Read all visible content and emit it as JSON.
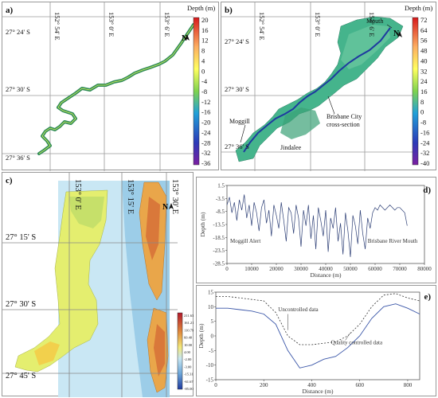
{
  "panel_a": {
    "label": "a)",
    "lon_labels": [
      "152° 54' E",
      "153° 0' E",
      "153° 6' E"
    ],
    "lat_labels": [
      "27° 24' S",
      "27° 30' S",
      "27° 36' S"
    ],
    "colorbar": {
      "title": "Depth (m)",
      "ticks": [
        "20",
        "16",
        "12",
        "8",
        "4",
        "0",
        "-4",
        "-8",
        "-12",
        "-16",
        "-20",
        "-24",
        "-28",
        "-32",
        "-36"
      ]
    },
    "north": "N"
  },
  "panel_b": {
    "label": "b)",
    "lon_labels": [
      "152° 54' E",
      "153° 0' E",
      "153° 6' E"
    ],
    "lat_labels": [
      "27° 24' S",
      "27° 30' S",
      "27° 36' S"
    ],
    "colorbar": {
      "title": "Depth (m)",
      "ticks": [
        "72",
        "64",
        "56",
        "48",
        "40",
        "32",
        "24",
        "16",
        "8",
        "0",
        "-8",
        "-16",
        "-24",
        "-32",
        "-40"
      ]
    },
    "north": "N",
    "annotations": {
      "mouth": "Mouth",
      "brisbane_city_1": "Brisbane City",
      "brisbane_city_2": "cross-section",
      "moggill": "Moggill",
      "jindalee": "Jindalee"
    }
  },
  "panel_c": {
    "label": "c)",
    "lon_labels": [
      "153° 0' E",
      "153° 15' E",
      "153° 30' E"
    ],
    "lat_labels": [
      "27° 15' S",
      "27° 30' S",
      "27° 45' S"
    ],
    "colorbar": {
      "ticks": [
        "211.63",
        "161.21",
        "110.79",
        "60.40",
        "10.00",
        "4.00",
        "-2.00",
        "-3.00",
        "-15.31",
        "-61.67",
        "-85.00"
      ]
    },
    "north": "N"
  },
  "chart_data": [
    {
      "id": "d",
      "label": "d)",
      "type": "line",
      "xlabel": "Distance (m)",
      "ylabel": "Depth (m)",
      "xlim": [
        0,
        80000
      ],
      "ylim": [
        -28.5,
        1.5
      ],
      "xticks": [
        "0",
        "10000",
        "20000",
        "30000",
        "40000",
        "50000",
        "60000",
        "70000",
        "80000"
      ],
      "yticks": [
        "1.5",
        "-3.5",
        "-8.5",
        "-13.5",
        "-18.5",
        "-23.5",
        "-28.5"
      ],
      "annotations": [
        "Moggill Alert",
        "Brisbane River Mouth"
      ],
      "x": [
        0,
        1000,
        2000,
        3000,
        4000,
        5000,
        6000,
        7000,
        8000,
        9000,
        10000,
        11000,
        12000,
        13000,
        14000,
        15000,
        16000,
        17000,
        18000,
        19000,
        20000,
        21000,
        22000,
        23000,
        24000,
        25000,
        26000,
        27000,
        28000,
        29000,
        30000,
        31000,
        32000,
        33000,
        34000,
        35000,
        36000,
        37000,
        38000,
        39000,
        40000,
        41000,
        42000,
        43000,
        44000,
        45000,
        46000,
        47000,
        48000,
        49000,
        50000,
        51000,
        52000,
        53000,
        54000,
        55000,
        56000,
        57000,
        58000,
        59000,
        60000,
        61000,
        62000,
        63000,
        64000,
        65000,
        66000,
        67000,
        68000,
        69000,
        70000,
        71000,
        72000,
        73000
      ],
      "y": [
        -6,
        -3,
        -9,
        -5,
        -12,
        -4,
        -8,
        -2,
        -11,
        -6,
        -14,
        -5,
        -9,
        -16,
        -7,
        -4,
        -13,
        -8,
        -18,
        -6,
        -10,
        -15,
        -5,
        -12,
        -20,
        -7,
        -9,
        -17,
        -6,
        -11,
        -22,
        -8,
        -14,
        -6,
        -19,
        -10,
        -23,
        -7,
        -12,
        -18,
        -8,
        -24,
        -11,
        -15,
        -7,
        -20,
        -13,
        -25,
        -9,
        -16,
        -26,
        -10,
        -14,
        -21,
        -8,
        -17,
        -23,
        -11,
        -15,
        -9,
        -7,
        -8,
        -6,
        -7,
        -8,
        -7,
        -6,
        -7,
        -8,
        -7,
        -7,
        -8,
        -9,
        -14
      ]
    },
    {
      "id": "e",
      "label": "e)",
      "type": "line",
      "xlabel": "Distance (m)",
      "ylabel": "Depth (m)",
      "xlim": [
        0,
        850
      ],
      "ylim": [
        -15,
        15
      ],
      "xticks": [
        "0",
        "200",
        "400",
        "600",
        "800"
      ],
      "yticks": [
        "15",
        "10",
        "5",
        "0",
        "-5",
        "-10",
        "-15"
      ],
      "series": [
        {
          "name": "Uncontrolled data",
          "x": [
            0,
            50,
            100,
            150,
            200,
            250,
            300,
            350,
            400,
            450,
            500,
            550,
            600,
            650,
            700,
            750,
            800,
            850
          ],
          "y": [
            13.5,
            13.5,
            13,
            12.5,
            12,
            8,
            0,
            -3,
            -3,
            -2.5,
            -2,
            0,
            4,
            10,
            14,
            14.5,
            13,
            12
          ]
        },
        {
          "name": "Quality controlled data",
          "x": [
            0,
            50,
            100,
            150,
            200,
            250,
            300,
            350,
            400,
            450,
            500,
            550,
            600,
            650,
            700,
            750,
            800,
            850
          ],
          "y": [
            9.5,
            9.5,
            9,
            8.5,
            7.5,
            4,
            -5,
            -11,
            -10,
            -8,
            -7,
            -4,
            0,
            6,
            10,
            11,
            9.5,
            7.5
          ]
        }
      ]
    }
  ],
  "colors": {
    "river_green": "#2e8b57",
    "deep_blue": "#1e3a9f",
    "land_c": "#e7f07a",
    "line_d": "#2c3e75"
  }
}
